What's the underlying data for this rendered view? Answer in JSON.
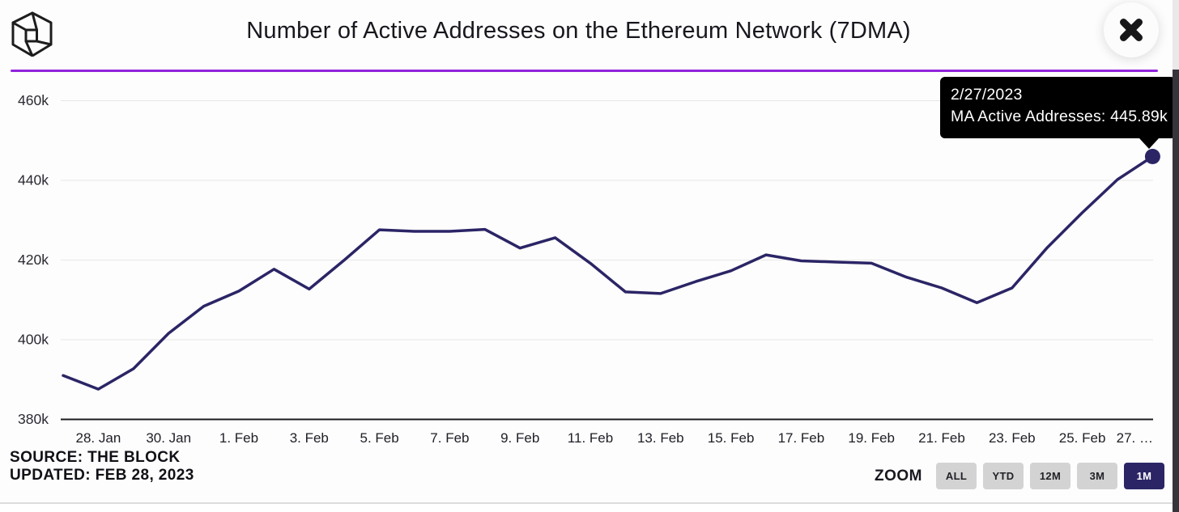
{
  "header": {
    "title": "Number of Active Addresses on the Ethereum Network (7DMA)",
    "logo_name": "the-block-logo"
  },
  "tooltip": {
    "date": "2/27/2023",
    "text": "MA Active Addresses: 445.89k"
  },
  "footer": {
    "source_line1": "SOURCE: THE BLOCK",
    "source_line2": "UPDATED: FEB 28, 2023",
    "zoom_label": "ZOOM",
    "zoom_buttons": [
      {
        "label": "ALL",
        "selected": false
      },
      {
        "label": "YTD",
        "selected": false
      },
      {
        "label": "12M",
        "selected": false
      },
      {
        "label": "3M",
        "selected": false
      },
      {
        "label": "1M",
        "selected": true
      }
    ]
  },
  "colors": {
    "accent_purple": "#9123dc",
    "series_line": "#2b2566",
    "tooltip_bg": "#000000",
    "grid": "#e7e7e7",
    "axis_line": "#1a1a20",
    "button_bg": "#d3d3d3",
    "button_selected_bg": "#2b2566"
  },
  "chart_data": {
    "type": "line",
    "title": "Number of Active Addresses on the Ethereum Network (7DMA)",
    "series": [
      {
        "name": "MA Active Addresses",
        "unit": "k",
        "dates": [
          "27 Jan",
          "28 Jan",
          "29 Jan",
          "30 Jan",
          "31 Jan",
          "1 Feb",
          "2 Feb",
          "3 Feb",
          "4 Feb",
          "5 Feb",
          "6 Feb",
          "7 Feb",
          "8 Feb",
          "9 Feb",
          "10 Feb",
          "11 Feb",
          "12 Feb",
          "13 Feb",
          "14 Feb",
          "15 Feb",
          "16 Feb",
          "17 Feb",
          "18 Feb",
          "19 Feb",
          "20 Feb",
          "21 Feb",
          "22 Feb",
          "23 Feb",
          "24 Feb",
          "25 Feb",
          "26 Feb",
          "27 Feb"
        ],
        "values": [
          390.9,
          387.5,
          392.6,
          401.5,
          408.3,
          412.1,
          417.6,
          412.6,
          419.9,
          427.5,
          427.1,
          427.1,
          427.6,
          422.9,
          425.5,
          419.1,
          411.9,
          411.5,
          414.5,
          417.2,
          421.2,
          419.7,
          419.4,
          419.1,
          415.6,
          412.9,
          409.2,
          412.9,
          423.0,
          431.8,
          440.1,
          445.89
        ]
      }
    ],
    "x_tick_labels": [
      "28. Jan",
      "30. Jan",
      "1. Feb",
      "3. Feb",
      "5. Feb",
      "7. Feb",
      "9. Feb",
      "11. Feb",
      "13. Feb",
      "15. Feb",
      "17. Feb",
      "19. Feb",
      "21. Feb",
      "23. Feb",
      "25. Feb",
      "27. …"
    ],
    "x_tick_first_index": 1,
    "x_tick_every": 2,
    "y_ticks": [
      380,
      400,
      420,
      440,
      460
    ],
    "y_tick_labels": [
      "380k",
      "400k",
      "420k",
      "440k",
      "460k"
    ],
    "ylim": [
      380,
      460
    ],
    "grid": "horizontal",
    "legend": "none",
    "highlight_point": {
      "date": "2/27/2023",
      "value": 445.89
    }
  }
}
